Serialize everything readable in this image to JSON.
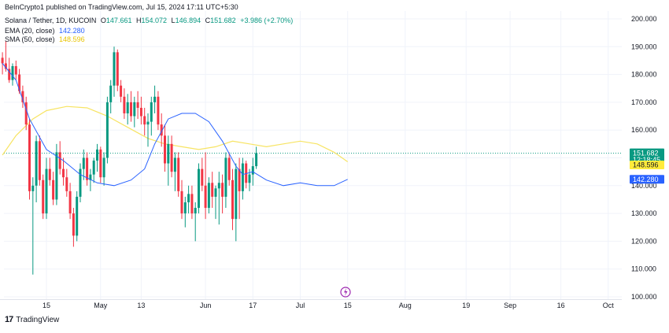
{
  "header": {
    "published": "BeInCrypto1 published on TradingView.com, Jul 15, 2024 17:11 UTC+5:30",
    "symbol": "Solana / Tether, 1D, KUCOIN",
    "o_label": "O",
    "o_value": "147.661",
    "h_label": "H",
    "h_value": "154.072",
    "l_label": "L",
    "l_value": "146.894",
    "c_label": "C",
    "c_value": "151.682",
    "change": "+3.986 (+2.70%)",
    "ema_label": "EMA (20, close)",
    "ema_value": "142.280",
    "sma_label": "SMA (50, close)",
    "sma_value": "148.596"
  },
  "footer": {
    "logo": "17",
    "brand": "TradingView"
  },
  "price_tags": {
    "last_price": "151.682",
    "countdown": "12:18:45",
    "sma": "148.596",
    "ema": "142.280"
  },
  "colors": {
    "up": "#089981",
    "down": "#f23645",
    "ema": "#2962ff",
    "sma": "#f7e463",
    "grid": "#f0f3fa",
    "last": "#089981"
  },
  "chart_data": {
    "type": "candlestick",
    "ylim": [
      100,
      200
    ],
    "y_ticks": [
      "200.000",
      "190.000",
      "180.000",
      "170.000",
      "160.000",
      "150.000",
      "140.000",
      "130.000",
      "120.000",
      "110.000",
      "100.000"
    ],
    "x_ticks": [
      {
        "label": "15",
        "day": 0
      },
      {
        "label": "May",
        "day": 16
      },
      {
        "label": "13",
        "day": 28
      },
      {
        "label": "Jun",
        "day": 47
      },
      {
        "label": "17",
        "day": 61
      },
      {
        "label": "Jul",
        "day": 75
      },
      {
        "label": "15",
        "day": 89
      },
      {
        "label": "Aug",
        "day": 106
      },
      {
        "label": "19",
        "day": 124
      },
      {
        "label": "Sep",
        "day": 137
      },
      {
        "label": "16",
        "day": 152
      },
      {
        "label": "Oct",
        "day": 166
      }
    ],
    "first_candle_day": -13,
    "candles": [
      [
        186,
        188,
        180,
        184
      ],
      [
        184,
        192,
        181,
        182
      ],
      [
        182,
        186,
        177,
        178
      ],
      [
        178,
        184,
        176,
        183
      ],
      [
        183,
        185,
        178,
        180
      ],
      [
        180,
        182,
        173,
        174
      ],
      [
        174,
        176,
        168,
        170
      ],
      [
        170,
        172,
        160,
        162
      ],
      [
        162,
        164,
        135,
        138
      ],
      [
        138,
        143,
        108,
        140
      ],
      [
        140,
        158,
        134,
        156
      ],
      [
        156,
        158,
        140,
        142
      ],
      [
        142,
        144,
        128,
        130
      ],
      [
        130,
        150,
        128,
        146
      ],
      [
        146,
        150,
        140,
        142
      ],
      [
        142,
        145,
        133,
        135
      ],
      [
        135,
        155,
        133,
        152
      ],
      [
        152,
        156,
        144,
        146
      ],
      [
        146,
        150,
        140,
        143
      ],
      [
        143,
        146,
        136,
        138
      ],
      [
        138,
        141,
        128,
        130
      ],
      [
        130,
        132,
        118,
        122
      ],
      [
        122,
        138,
        120,
        136
      ],
      [
        136,
        148,
        134,
        146
      ],
      [
        146,
        153,
        142,
        150
      ],
      [
        150,
        152,
        140,
        142
      ],
      [
        142,
        146,
        138,
        144
      ],
      [
        144,
        150,
        141,
        149
      ],
      [
        149,
        155,
        145,
        153
      ],
      [
        153,
        154,
        141,
        143
      ],
      [
        143,
        152,
        140,
        150
      ],
      [
        150,
        172,
        148,
        170
      ],
      [
        170,
        178,
        166,
        176
      ],
      [
        176,
        190,
        172,
        188
      ],
      [
        188,
        189,
        174,
        176
      ],
      [
        176,
        178,
        170,
        172
      ],
      [
        172,
        175,
        164,
        166
      ],
      [
        166,
        173,
        162,
        170
      ],
      [
        170,
        174,
        163,
        165
      ],
      [
        165,
        172,
        161,
        170
      ],
      [
        170,
        174,
        164,
        168
      ],
      [
        168,
        172,
        162,
        165
      ],
      [
        165,
        168,
        158,
        162
      ],
      [
        162,
        166,
        154,
        163
      ],
      [
        163,
        172,
        158,
        170
      ],
      [
        170,
        176,
        166,
        172
      ],
      [
        172,
        174,
        160,
        162
      ],
      [
        162,
        166,
        154,
        158
      ],
      [
        158,
        162,
        145,
        148
      ],
      [
        148,
        158,
        140,
        155
      ],
      [
        155,
        158,
        143,
        145
      ],
      [
        145,
        152,
        138,
        150
      ],
      [
        150,
        152,
        136,
        138
      ],
      [
        138,
        142,
        128,
        130
      ],
      [
        130,
        136,
        125,
        134
      ],
      [
        134,
        140,
        130,
        137
      ],
      [
        137,
        140,
        128,
        130
      ],
      [
        130,
        134,
        120,
        132
      ],
      [
        132,
        148,
        130,
        146
      ],
      [
        146,
        150,
        138,
        140
      ],
      [
        140,
        152,
        128,
        132
      ],
      [
        132,
        143,
        130,
        141
      ],
      [
        141,
        145,
        132,
        136
      ],
      [
        136,
        140,
        128,
        139
      ],
      [
        139,
        145,
        126,
        141
      ],
      [
        141,
        144,
        130,
        136
      ],
      [
        136,
        152,
        132,
        150
      ],
      [
        150,
        152,
        140,
        142
      ],
      [
        142,
        146,
        124,
        128
      ],
      [
        128,
        148,
        120,
        146
      ],
      [
        146,
        150,
        128,
        138
      ],
      [
        138,
        150,
        135,
        148
      ],
      [
        148,
        149,
        139,
        141
      ],
      [
        141,
        146,
        138,
        144
      ],
      [
        144,
        150,
        140,
        147
      ],
      [
        147,
        154,
        146,
        151.682
      ]
    ],
    "ema": [
      [
        -13,
        184
      ],
      [
        -9,
        178
      ],
      [
        -5,
        164
      ],
      [
        0,
        153
      ],
      [
        5,
        149
      ],
      [
        10,
        144
      ],
      [
        15,
        141
      ],
      [
        20,
        140
      ],
      [
        25,
        142
      ],
      [
        29,
        146
      ],
      [
        32,
        155
      ],
      [
        36,
        164
      ],
      [
        40,
        166
      ],
      [
        44,
        166
      ],
      [
        48,
        163
      ],
      [
        52,
        156
      ],
      [
        56,
        147
      ],
      [
        58,
        144
      ],
      [
        61,
        145
      ],
      [
        65,
        142
      ],
      [
        70,
        140
      ],
      [
        75,
        141
      ],
      [
        80,
        140
      ],
      [
        85,
        140
      ],
      [
        89,
        142.28
      ]
    ],
    "sma": [
      [
        -13,
        151
      ],
      [
        -9,
        158
      ],
      [
        -4,
        164
      ],
      [
        0,
        167
      ],
      [
        6,
        168.5
      ],
      [
        12,
        168
      ],
      [
        18,
        165
      ],
      [
        24,
        161
      ],
      [
        30,
        157
      ],
      [
        35,
        155
      ],
      [
        40,
        154
      ],
      [
        45,
        153
      ],
      [
        50,
        154
      ],
      [
        55,
        156
      ],
      [
        60,
        155
      ],
      [
        65,
        154
      ],
      [
        70,
        155
      ],
      [
        75,
        156
      ],
      [
        80,
        155
      ],
      [
        85,
        152
      ],
      [
        89,
        148.596
      ]
    ]
  }
}
